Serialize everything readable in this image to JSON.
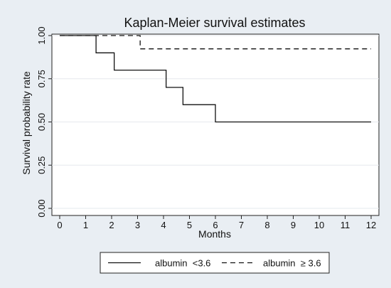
{
  "chart_data": {
    "type": "line",
    "title": "Kaplan-Meier survival estimates",
    "xlabel": "Months",
    "ylabel": "Survival probability rate",
    "xlim": [
      0,
      12
    ],
    "ylim": [
      0,
      1
    ],
    "x_ticks": [
      "0",
      "1",
      "2",
      "3",
      "4",
      "5",
      "6",
      "7",
      "8",
      "9",
      "10",
      "11",
      "12"
    ],
    "y_ticks": [
      "0.00",
      "0.25",
      "0.50",
      "0.75",
      "1.00"
    ],
    "grid": true,
    "step": true,
    "legend_position": "bottom",
    "series": [
      {
        "name": "albumin  <3.6",
        "style": "solid",
        "color": "#111111",
        "x": [
          0,
          1.4,
          2.1,
          4.1,
          4.75,
          6.0,
          12
        ],
        "y": [
          1.0,
          0.9,
          0.8,
          0.7,
          0.6,
          0.5,
          0.5
        ]
      },
      {
        "name": "albumin  ≥ 3.6",
        "style": "dashed",
        "color": "#111111",
        "x": [
          0,
          3.1,
          12
        ],
        "y": [
          1.0,
          0.923,
          0.923
        ]
      }
    ]
  }
}
